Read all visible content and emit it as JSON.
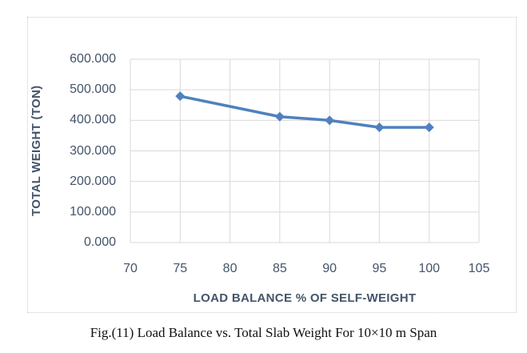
{
  "caption": "Fig.(11) Load Balance vs. Total Slab Weight For 10×10 m Span",
  "chart_data": {
    "type": "line",
    "x": [
      75,
      85,
      90,
      95,
      100
    ],
    "values": [
      479,
      412,
      400,
      377,
      377
    ],
    "title": "",
    "xlabel": "LOAD BALANCE % OF SELF-WEIGHT",
    "ylabel": "TOTAL WEIGHT (TON)",
    "xlim": [
      70,
      105
    ],
    "ylim": [
      0,
      600
    ],
    "x_ticks": [
      70,
      75,
      80,
      85,
      90,
      95,
      100,
      105
    ],
    "y_tick_labels": [
      "0.000",
      "100.000",
      "200.000",
      "300.000",
      "400.000",
      "500.000",
      "600.000"
    ],
    "grid": true,
    "legend": "none",
    "marker": "diamond",
    "colors": {
      "series": "#4f81bd",
      "gridline": "#d9d9d9",
      "axis_labels": "#44546a",
      "frame_border": "#c9c9c9"
    }
  }
}
